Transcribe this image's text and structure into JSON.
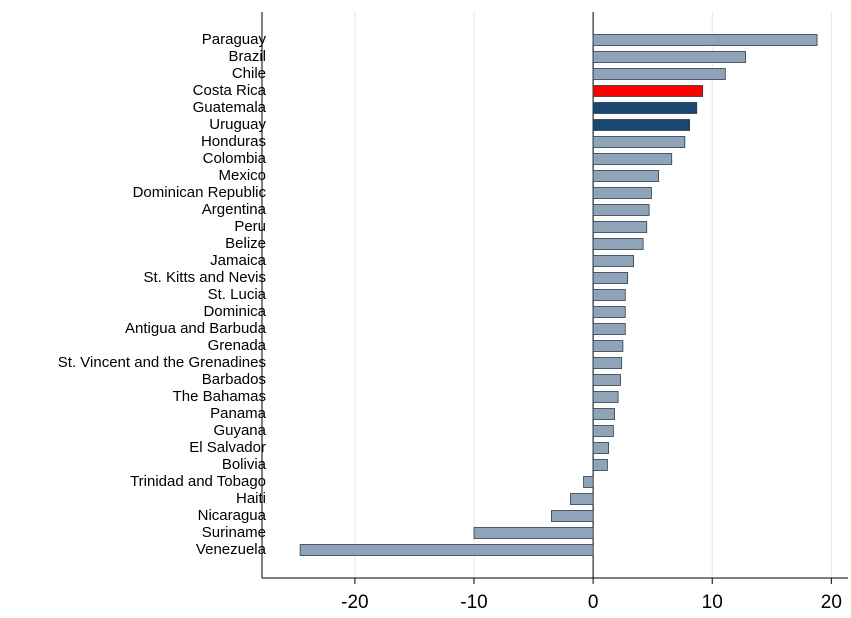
{
  "chart_data": {
    "type": "hbar",
    "categories": [
      "Paraguay",
      "Brazil",
      "Chile",
      "Costa Rica",
      "Guatemala",
      "Uruguay",
      "Honduras",
      "Colombia",
      "Mexico",
      "Dominican Republic",
      "Argentina",
      "Peru",
      "Belize",
      "Jamaica",
      "St. Kitts and Nevis",
      "St. Lucia",
      "Dominica",
      "Antigua and Barbuda",
      "Grenada",
      "St. Vincent and the Grenadines",
      "Barbados",
      "The Bahamas",
      "Panama",
      "Guyana",
      "El Salvador",
      "Bolivia",
      "Trinidad and Tobago",
      "Haiti",
      "Nicaragua",
      "Suriname",
      "Venezuela"
    ],
    "values": [
      18.8,
      12.8,
      11.1,
      9.2,
      8.7,
      8.1,
      7.7,
      6.6,
      5.5,
      4.9,
      4.7,
      4.5,
      4.2,
      3.4,
      2.9,
      2.7,
      2.7,
      2.7,
      2.5,
      2.4,
      2.3,
      2.1,
      1.8,
      1.7,
      1.3,
      1.2,
      -0.8,
      -1.9,
      -3.5,
      -10.0,
      -24.6
    ],
    "colors": [
      "#90a4b9",
      "#90a4b9",
      "#90a4b9",
      "#ff0000",
      "#1a476f",
      "#1a476f",
      "#90a4b9",
      "#90a4b9",
      "#90a4b9",
      "#90a4b9",
      "#90a4b9",
      "#90a4b9",
      "#90a4b9",
      "#90a4b9",
      "#90a4b9",
      "#90a4b9",
      "#90a4b9",
      "#90a4b9",
      "#90a4b9",
      "#90a4b9",
      "#90a4b9",
      "#90a4b9",
      "#90a4b9",
      "#90a4b9",
      "#90a4b9",
      "#90a4b9",
      "#90a4b9",
      "#90a4b9",
      "#90a4b9",
      "#90a4b9",
      "#90a4b9"
    ],
    "xlim": [
      -27.8,
      21.4
    ],
    "xticks": [
      -20,
      -10,
      0,
      10,
      20
    ],
    "grid": true
  }
}
